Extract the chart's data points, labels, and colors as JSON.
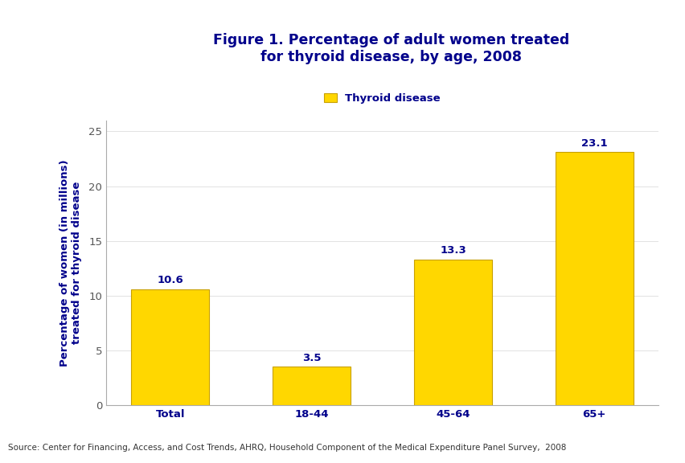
{
  "categories": [
    "Total",
    "18-44",
    "45-64",
    "65+"
  ],
  "values": [
    10.6,
    3.5,
    13.3,
    23.1
  ],
  "bar_color": "#FFD700",
  "bar_edgecolor": "#C8A000",
  "title_line1": "Figure 1. Percentage of adult women treated",
  "title_line2": "for thyroid disease, by age, 2008",
  "title_color": "#00008B",
  "ylabel": "Percentage of women (in millions)\ntreated for thyroid disease",
  "ylabel_color": "#00008B",
  "xlabel_color": "#00008B",
  "legend_label": "Thyroid disease",
  "legend_color": "#FFD700",
  "legend_edgecolor": "#C8A000",
  "ylim": [
    0,
    26
  ],
  "yticks": [
    0,
    5,
    10,
    15,
    20,
    25
  ],
  "value_label_color": "#00008B",
  "source_text": "Source: Center for Financing, Access, and Cost Trends, AHRQ, Household Component of the Medical Expenditure Panel Survey,  2008",
  "background_color": "#FFFFFF",
  "header_bar_color": "#00008B",
  "tick_color": "#555555",
  "spine_color": "#AAAAAA",
  "title_fontsize": 12.5,
  "axis_fontsize": 9.5,
  "value_fontsize": 9.5,
  "source_fontsize": 7.5,
  "legend_fontsize": 9.5,
  "logo_box_color": "#1a6db5",
  "logo_box_left_color": "#2255a0"
}
